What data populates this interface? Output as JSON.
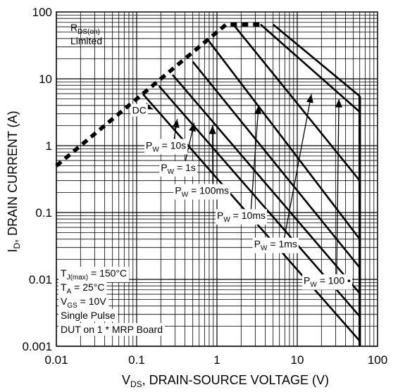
{
  "chart_data": {
    "type": "line",
    "xscale": "log",
    "yscale": "log",
    "xlim": [
      0.01,
      100
    ],
    "ylim": [
      0.001,
      100
    ],
    "grid": true,
    "x_ticks": [
      "0.01",
      "0.1",
      "1",
      "10",
      "100"
    ],
    "y_ticks": [
      "0.001",
      "0.01",
      "0.1",
      "1",
      "10",
      "100"
    ],
    "xlabel": {
      "main": "V",
      "sub": "DS",
      "rest": ", DRAIN-SOURCE VOLTAGE (V)"
    },
    "ylabel": {
      "main": "I",
      "sub": "D",
      "rest": ", DRAIN CURRENT (A)"
    },
    "rds_label": {
      "main": "R",
      "sub": "DS(on)",
      "line2": "Limited"
    },
    "rds_limit": {
      "style": "dashed",
      "points": [
        [
          0.01,
          0.5
        ],
        [
          0.1,
          5
        ],
        [
          1,
          50
        ],
        [
          1.3,
          65
        ],
        [
          3.5,
          65
        ]
      ]
    },
    "vds_max": 60,
    "series": [
      {
        "name": "DC",
        "points": [
          [
            0.12,
            5.9
          ],
          [
            60,
            0.0012
          ]
        ]
      },
      {
        "name": "10s",
        "points": [
          [
            0.19,
            7.8
          ],
          [
            60,
            0.0028
          ]
        ]
      },
      {
        "name": "1s",
        "points": [
          [
            0.28,
            11.5
          ],
          [
            60,
            0.0062
          ]
        ]
      },
      {
        "name": "100ms",
        "points": [
          [
            0.5,
            18
          ],
          [
            60,
            0.015
          ]
        ]
      },
      {
        "name": "10ms",
        "points": [
          [
            0.75,
            40
          ],
          [
            60,
            0.04
          ]
        ]
      },
      {
        "name": "1ms",
        "points": [
          [
            1.6,
            65
          ],
          [
            60,
            0.3
          ]
        ]
      },
      {
        "name": "100",
        "points": [
          [
            3.5,
            65
          ],
          [
            60,
            3.2
          ]
        ]
      },
      {
        "name": "",
        "points": [
          [
            5,
            65
          ],
          [
            60,
            5.5
          ]
        ]
      }
    ],
    "labels": [
      {
        "key": "dc",
        "main": "DC",
        "sub": "",
        "rest": "",
        "at": [
          0.088,
          3.0
        ],
        "arrow_to": [
          0.16,
          3.5
        ]
      },
      {
        "key": "pw10s",
        "main": "P",
        "sub": "W",
        "rest": " = 10s",
        "at": [
          0.13,
          0.9
        ],
        "arrow_to": [
          0.32,
          2.5
        ]
      },
      {
        "key": "pw1s",
        "main": "P",
        "sub": "W",
        "rest": " = 1s",
        "at": [
          0.2,
          0.42
        ],
        "arrow_to": [
          0.52,
          2.2
        ]
      },
      {
        "key": "pw100ms",
        "main": "P",
        "sub": "W",
        "rest": " = 100ms",
        "at": [
          0.3,
          0.19
        ],
        "arrow_to": [
          0.88,
          2.0
        ]
      },
      {
        "key": "pw10ms",
        "main": "P",
        "sub": "W",
        "rest": " = 10ms",
        "at": [
          1.0,
          0.08
        ],
        "arrow_to": [
          3.3,
          4.0
        ]
      },
      {
        "key": "pw1ms",
        "main": "P",
        "sub": "W",
        "rest": " = 1ms",
        "at": [
          2.9,
          0.03
        ],
        "arrow_to": [
          15,
          5.9
        ]
      },
      {
        "key": "pw100",
        "main": "P",
        "sub": "W",
        "rest": " = 100 •",
        "at": [
          12,
          0.0085
        ],
        "arrow_to": [
          33,
          5.0
        ]
      }
    ],
    "conditions": [
      {
        "main": "T",
        "sub": "J(max)",
        "rest": " = 150°C"
      },
      {
        "main": "T",
        "sub": "A",
        "rest": " = 25°C"
      },
      {
        "main": "V",
        "sub": "GS",
        "rest": " = 10V"
      },
      {
        "main": "Single Pulse",
        "sub": "",
        "rest": ""
      },
      {
        "main": "DUT on 1 * MRP Board",
        "sub": "",
        "rest": ""
      }
    ]
  }
}
